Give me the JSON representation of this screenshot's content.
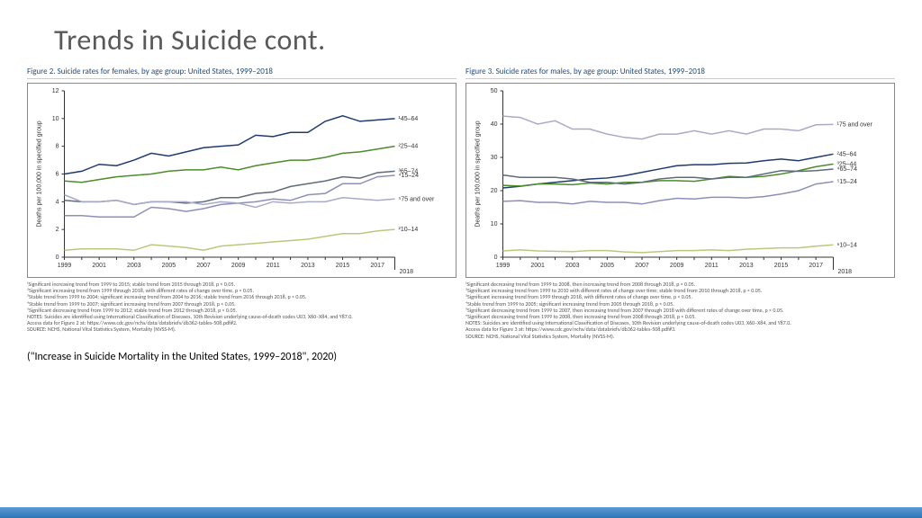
{
  "slide": {
    "title": "Trends in Suicide cont.",
    "citation": "(\"Increase in Suicide Mortality in the United States, 1999–2018\", 2020)"
  },
  "fig2": {
    "title": "Figure 2. Suicide rates for females, by age group: United States, 1999–2018",
    "type": "line",
    "x_label_end": "2018",
    "y_label": "Deaths per 100,000 in specified group",
    "x_years": [
      1999,
      2000,
      2001,
      2002,
      2003,
      2004,
      2005,
      2006,
      2007,
      2008,
      2009,
      2010,
      2011,
      2012,
      2013,
      2014,
      2015,
      2016,
      2017,
      2018
    ],
    "x_ticks": [
      1999,
      2001,
      2003,
      2005,
      2007,
      2009,
      2011,
      2013,
      2015,
      2017
    ],
    "ylim": [
      0,
      12
    ],
    "y_ticks": [
      0,
      2,
      4,
      6,
      8,
      10,
      12
    ],
    "series": [
      {
        "label": "¹45–64",
        "color": "#1f3a6e",
        "width": 2,
        "values": [
          6.0,
          6.2,
          6.7,
          6.6,
          7.0,
          7.5,
          7.3,
          7.6,
          7.9,
          8.0,
          8.1,
          8.8,
          8.7,
          9.0,
          9.0,
          9.8,
          10.2,
          9.8,
          9.9,
          10.0
        ]
      },
      {
        "label": "²25–44",
        "color": "#4c8c2b",
        "width": 1.8,
        "values": [
          5.5,
          5.4,
          5.6,
          5.8,
          5.9,
          6.0,
          6.2,
          6.3,
          6.3,
          6.5,
          6.3,
          6.6,
          6.8,
          7.0,
          7.0,
          7.2,
          7.5,
          7.6,
          7.8,
          8.0
        ]
      },
      {
        "label": "³65–74",
        "color": "#5f6b7a",
        "width": 1.5,
        "values": [
          4.1,
          4.0,
          4.0,
          4.1,
          3.8,
          4.0,
          4.0,
          3.9,
          4.0,
          4.3,
          4.3,
          4.6,
          4.7,
          5.1,
          5.3,
          5.5,
          5.8,
          5.7,
          6.1,
          6.2
        ]
      },
      {
        "label": "⁴15–24",
        "color": "#8e8fb8",
        "width": 1.5,
        "values": [
          3.0,
          3.0,
          2.9,
          2.9,
          2.9,
          3.6,
          3.5,
          3.3,
          3.5,
          3.8,
          3.9,
          4.0,
          4.2,
          4.1,
          4.5,
          4.6,
          5.3,
          5.3,
          5.8,
          5.9
        ]
      },
      {
        "label": "⁵75 and over",
        "color": "#a9aac8",
        "width": 1.5,
        "values": [
          4.5,
          4.0,
          4.0,
          4.1,
          3.8,
          4.0,
          4.0,
          4.0,
          3.8,
          4.0,
          3.9,
          3.6,
          4.0,
          3.9,
          4.0,
          4.0,
          4.3,
          4.2,
          4.1,
          4.2
        ]
      },
      {
        "label": "²10–14",
        "color": "#b8c97f",
        "width": 1.5,
        "values": [
          0.5,
          0.6,
          0.6,
          0.6,
          0.5,
          0.9,
          0.8,
          0.7,
          0.5,
          0.8,
          0.9,
          1.0,
          1.1,
          1.2,
          1.3,
          1.5,
          1.7,
          1.7,
          1.9,
          2.0
        ]
      }
    ],
    "footnotes": [
      "¹Significant increasing trend from 1999 to 2015; stable trend from 2015 through 2018, p < 0.05.",
      "²Significant increasing trend from 1999 through 2018, with different rates of change over time, p < 0.05.",
      "³Stable trend from 1999 to 2004; significant increasing trend from 2004 to 2016; stable trend from 2016 through 2018, p < 0.05.",
      "⁴Stable trend from 1999 to 2007; significant increasing trend from 2007 through 2018, p < 0.05.",
      "⁵Significant decreasing trend from 1999 to 2012; stable trend from 2012 through 2018, p < 0.05.",
      "NOTES: Suicides are identified using International Classification of Diseases, 10th Revision underlying cause-of-death codes U03, X60–X84, and Y87.0.",
      "Access data for Figure 2 at: https://www.cdc.gov/nchs/data/databriefs/db362-tables-508.pdf#2.",
      "SOURCE: NCHS, National Vital Statistics System, Mortality (NVSS-M)."
    ]
  },
  "fig3": {
    "title": "Figure 3. Suicide rates for males, by age group: United States, 1999–2018",
    "type": "line",
    "x_label_end": "2018",
    "y_label": "Deaths per 100,000 in specified group",
    "x_years": [
      1999,
      2000,
      2001,
      2002,
      2003,
      2004,
      2005,
      2006,
      2007,
      2008,
      2009,
      2010,
      2011,
      2012,
      2013,
      2014,
      2015,
      2016,
      2017,
      2018
    ],
    "x_ticks": [
      1999,
      2001,
      2003,
      2005,
      2007,
      2009,
      2011,
      2013,
      2015,
      2017
    ],
    "ylim": [
      0,
      50
    ],
    "y_ticks": [
      0,
      10,
      20,
      30,
      40,
      50
    ],
    "series": [
      {
        "label": "¹75 and over",
        "color": "#a9aac8",
        "width": 1.8,
        "values": [
          42.4,
          42.0,
          40.0,
          41.0,
          38.5,
          38.5,
          37.0,
          36.0,
          35.5,
          37.0,
          37.0,
          38.0,
          37.0,
          38.0,
          37.0,
          38.5,
          38.5,
          38.0,
          39.8,
          39.9
        ]
      },
      {
        "label": "²45–64",
        "color": "#1f3a6e",
        "width": 2,
        "values": [
          20.8,
          21.3,
          22.0,
          22.5,
          23.0,
          23.5,
          23.8,
          24.5,
          25.5,
          26.5,
          27.5,
          27.8,
          27.8,
          28.2,
          28.3,
          29.0,
          29.5,
          29.0,
          30.0,
          31.0
        ]
      },
      {
        "label": "³25–44",
        "color": "#4c8c2b",
        "width": 1.8,
        "values": [
          21.6,
          21.4,
          22.0,
          22.0,
          21.8,
          22.3,
          22.0,
          22.5,
          22.5,
          23.0,
          23.0,
          22.8,
          23.5,
          24.3,
          24.0,
          24.3,
          25.0,
          26.0,
          27.2,
          28.0
        ]
      },
      {
        "label": "⁴65–74",
        "color": "#5f6b7a",
        "width": 1.5,
        "values": [
          24.7,
          24.0,
          24.0,
          24.0,
          23.5,
          22.5,
          22.5,
          22.0,
          22.5,
          23.5,
          24.0,
          24.0,
          23.5,
          24.0,
          24.0,
          25.0,
          26.0,
          25.8,
          26.0,
          26.5
        ]
      },
      {
        "label": "⁵15–24",
        "color": "#8e8fb8",
        "width": 1.5,
        "values": [
          16.8,
          17.0,
          16.5,
          16.5,
          16.0,
          16.8,
          16.5,
          16.5,
          16.0,
          17.0,
          17.7,
          17.5,
          18.0,
          18.0,
          17.8,
          18.2,
          19.0,
          20.0,
          22.0,
          22.7
        ]
      },
      {
        "label": "⁶10–14",
        "color": "#b8c97f",
        "width": 1.5,
        "values": [
          1.9,
          2.2,
          1.9,
          1.8,
          1.7,
          2.0,
          2.0,
          1.6,
          1.4,
          1.7,
          2.0,
          2.0,
          2.2,
          2.0,
          2.4,
          2.6,
          2.8,
          2.8,
          3.3,
          3.7
        ]
      }
    ],
    "footnotes": [
      "¹Significant decreasing trend from 1999 to 2008, then increasing trend from 2008 through 2018, p < 0.05.",
      "²Significant increasing trend from 1999 to 2010 with different rates of change over time; stable trend from 2010 through 2018, p < 0.05.",
      "³Significant increasing trend from 1999 through 2018, with different rates of change over time, p < 0.05.",
      "⁴Stable trend from 1999 to 2005; significant increasing trend from 2005 through 2018, p < 0.05.",
      "⁵Significant decreasing trend from 1999 to 2007, then increasing trend from 2007 through 2018 with different rates of change over time, p < 0.05.",
      "⁶Significant decreasing trend from 1999 to 2008, then increasing trend from 2008 through 2018, p < 0.05.",
      "NOTES: Suicides are identified using International Classification of Diseases, 10th Revision underlying cause-of-death codes U03, X60–X84, and Y87.0.",
      "Access data for Figure 3 at: https://www.cdc.gov/nchs/data/databriefs/db362-tables-508.pdf#3.",
      "SOURCE: NCHS, National Vital Statistics System, Mortality (NVSS-M)."
    ]
  },
  "style": {
    "plot_bg": "#ffffff",
    "axis_color": "#333333",
    "tick_font_size": 7,
    "title_font_size": 9,
    "title_color": "#1f497d"
  }
}
